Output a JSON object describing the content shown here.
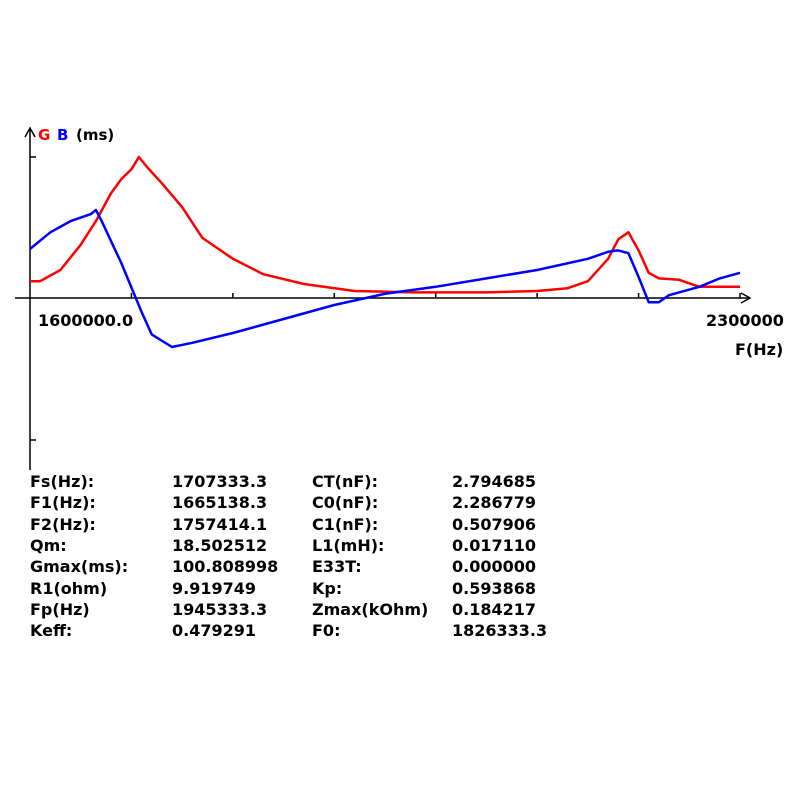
{
  "chart_data": {
    "type": "line",
    "legend": [
      {
        "label": "G",
        "color": "#ff0000"
      },
      {
        "label": "B",
        "color": "#0000ff"
      }
    ],
    "y_unit_label": "(ms)",
    "xlabel": "F(Hz)",
    "x_tick_labels": {
      "min": "1600000.0",
      "max": "2300000"
    },
    "xlim": [
      1600000,
      2300000
    ],
    "ylim": [
      -100.8,
      100.8
    ],
    "grid": false,
    "series": [
      {
        "name": "G",
        "color": "#ff0000",
        "x": [
          1600000,
          1610000,
          1630000,
          1650000,
          1665000,
          1680000,
          1690000,
          1700000,
          1707333,
          1715000,
          1730000,
          1750000,
          1770000,
          1800000,
          1830000,
          1870000,
          1920000,
          1980000,
          2050000,
          2100000,
          2130000,
          2150000,
          2170000,
          2180000,
          2190000,
          2200000,
          2210000,
          2220000,
          2240000,
          2260000,
          2270000,
          2300000
        ],
        "y": [
          12,
          12,
          20,
          38,
          55,
          75,
          85,
          92,
          100.8,
          94,
          82,
          65,
          43,
          28,
          17,
          10,
          5,
          4,
          4,
          5,
          7,
          12,
          28,
          42,
          47,
          34,
          18,
          14,
          13,
          8,
          8,
          8
        ]
      },
      {
        "name": "B",
        "color": "#0000ff",
        "x": [
          1600000,
          1620000,
          1640000,
          1660000,
          1665000,
          1670000,
          1690000,
          1710000,
          1720000,
          1740000,
          1760000,
          1800000,
          1850000,
          1900000,
          1950000,
          2000000,
          2050000,
          2100000,
          2150000,
          2170000,
          2180000,
          2190000,
          2200000,
          2210000,
          2220000,
          2230000,
          2260000,
          2280000,
          2300000
        ],
        "y": [
          35,
          47,
          55,
          60,
          63,
          56,
          25,
          -10,
          -26,
          -35,
          -32,
          -25,
          -15,
          -5,
          3,
          8,
          14,
          20,
          28,
          33,
          34,
          32,
          15,
          -3,
          -3,
          2,
          8,
          14,
          18
        ]
      }
    ]
  },
  "parameters": [
    {
      "label": "Fs(Hz):",
      "value": "1707333.3",
      "label2": "CT(nF):",
      "value2": "2.794685"
    },
    {
      "label": "F1(Hz):",
      "value": "1665138.3",
      "label2": "C0(nF):",
      "value2": "2.286779"
    },
    {
      "label": "F2(Hz):",
      "value": "1757414.1",
      "label2": "C1(nF):",
      "value2": "0.507906"
    },
    {
      "label": "Qm:",
      "value": "18.502512",
      "label2": "L1(mH):",
      "value2": "0.017110"
    },
    {
      "label": "Gmax(ms):",
      "value": "100.808998",
      "label2": "E33T:",
      "value2": "0.000000"
    },
    {
      "label": "R1(ohm)",
      "value": "9.919749",
      "label2": "Kp:",
      "value2": "0.593868"
    },
    {
      "label": "Fp(Hz)",
      "value": "1945333.3",
      "label2": "Zmax(kOhm)",
      "value2": "0.184217"
    },
    {
      "label": "Keff:",
      "value": "0.479291",
      "label2": "F0:",
      "value2": "1826333.3"
    }
  ]
}
